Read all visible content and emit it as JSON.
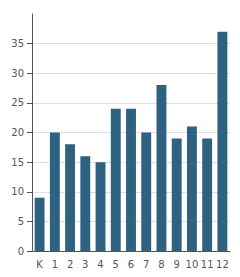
{
  "chart_data": {
    "type": "bar",
    "categories": [
      "K",
      "1",
      "2",
      "3",
      "4",
      "5",
      "6",
      "7",
      "8",
      "9",
      "10",
      "11",
      "12"
    ],
    "values": [
      9,
      20,
      18,
      16,
      15,
      24,
      24,
      20,
      28,
      19,
      21,
      19,
      37
    ],
    "color": "#2e6280",
    "ylim": [
      0,
      40
    ],
    "yticks": [
      0,
      5,
      10,
      15,
      20,
      25,
      30,
      35
    ],
    "grid": true
  }
}
